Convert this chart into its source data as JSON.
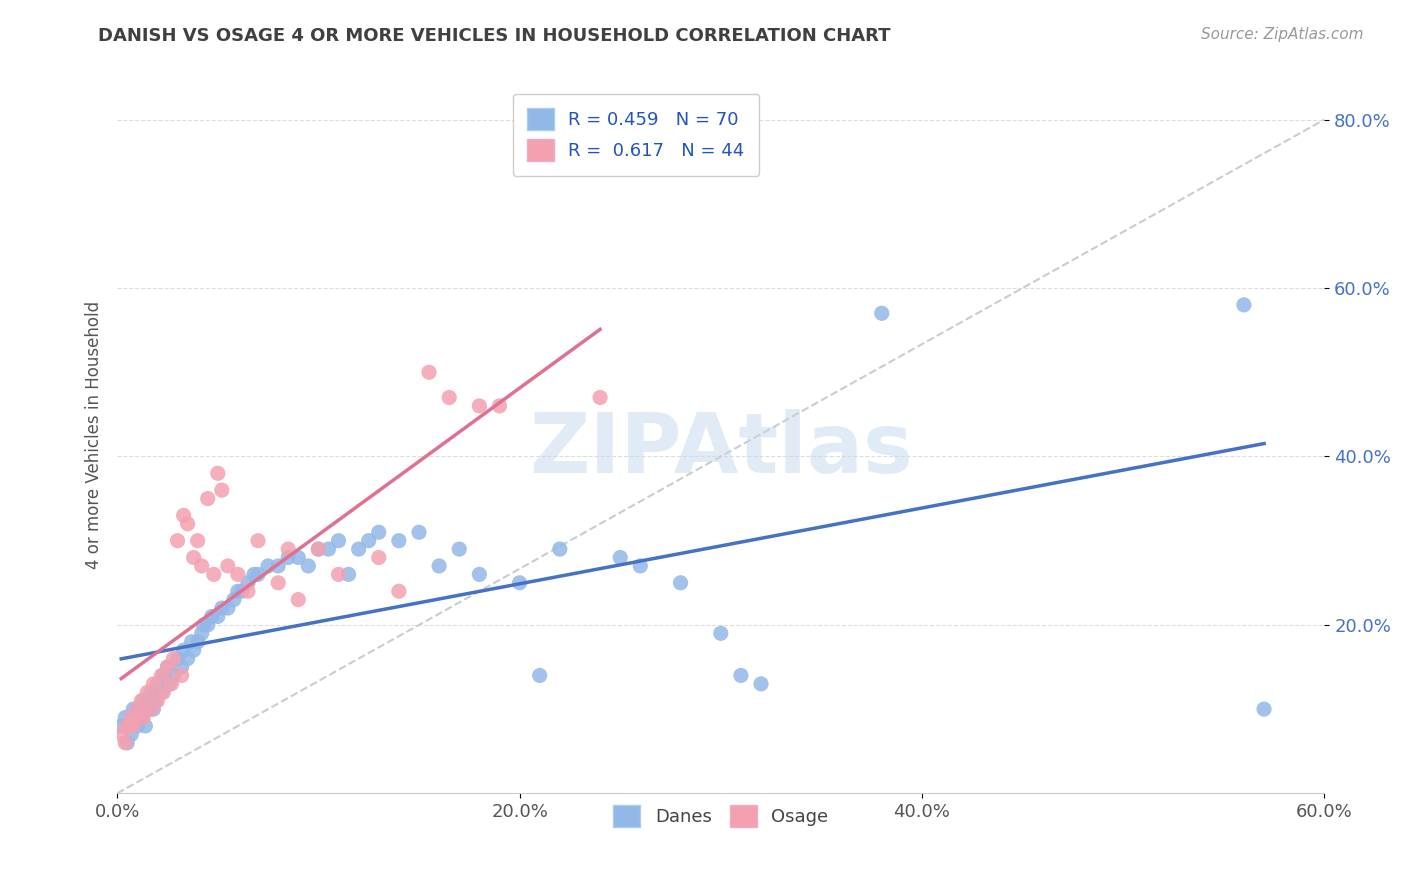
{
  "title": "DANISH VS OSAGE 4 OR MORE VEHICLES IN HOUSEHOLD CORRELATION CHART",
  "source": "Source: ZipAtlas.com",
  "ylabel": "4 or more Vehicles in Household",
  "xlim": [
    0.0,
    0.6
  ],
  "ylim": [
    0.0,
    0.85
  ],
  "xtick_vals": [
    0.0,
    0.2,
    0.4,
    0.6
  ],
  "xtick_labels": [
    "0.0%",
    "20.0%",
    "40.0%",
    "60.0%"
  ],
  "ytick_vals": [
    0.2,
    0.4,
    0.6,
    0.8
  ],
  "ytick_labels": [
    "20.0%",
    "40.0%",
    "60.0%",
    "80.0%"
  ],
  "danes_color": "#92b8e8",
  "osage_color": "#f4a0b0",
  "danes_line_color": "#4472c4",
  "osage_line_color": "#e07090",
  "R_danes": 0.459,
  "N_danes": 70,
  "R_osage": 0.617,
  "N_osage": 44,
  "legend_label_danes": "Danes",
  "legend_label_osage": "Osage",
  "danes_points": [
    [
      0.002,
      0.08
    ],
    [
      0.004,
      0.09
    ],
    [
      0.005,
      0.06
    ],
    [
      0.007,
      0.07
    ],
    [
      0.008,
      0.1
    ],
    [
      0.01,
      0.08
    ],
    [
      0.01,
      0.1
    ],
    [
      0.012,
      0.09
    ],
    [
      0.013,
      0.11
    ],
    [
      0.014,
      0.08
    ],
    [
      0.015,
      0.1
    ],
    [
      0.016,
      0.11
    ],
    [
      0.017,
      0.12
    ],
    [
      0.018,
      0.1
    ],
    [
      0.019,
      0.11
    ],
    [
      0.02,
      0.13
    ],
    [
      0.022,
      0.12
    ],
    [
      0.023,
      0.14
    ],
    [
      0.025,
      0.15
    ],
    [
      0.026,
      0.13
    ],
    [
      0.028,
      0.14
    ],
    [
      0.03,
      0.16
    ],
    [
      0.032,
      0.15
    ],
    [
      0.033,
      0.17
    ],
    [
      0.035,
      0.16
    ],
    [
      0.037,
      0.18
    ],
    [
      0.038,
      0.17
    ],
    [
      0.04,
      0.18
    ],
    [
      0.042,
      0.19
    ],
    [
      0.043,
      0.2
    ],
    [
      0.045,
      0.2
    ],
    [
      0.047,
      0.21
    ],
    [
      0.05,
      0.21
    ],
    [
      0.052,
      0.22
    ],
    [
      0.055,
      0.22
    ],
    [
      0.058,
      0.23
    ],
    [
      0.06,
      0.24
    ],
    [
      0.062,
      0.24
    ],
    [
      0.065,
      0.25
    ],
    [
      0.068,
      0.26
    ],
    [
      0.07,
      0.26
    ],
    [
      0.075,
      0.27
    ],
    [
      0.08,
      0.27
    ],
    [
      0.085,
      0.28
    ],
    [
      0.09,
      0.28
    ],
    [
      0.095,
      0.27
    ],
    [
      0.1,
      0.29
    ],
    [
      0.105,
      0.29
    ],
    [
      0.11,
      0.3
    ],
    [
      0.115,
      0.26
    ],
    [
      0.12,
      0.29
    ],
    [
      0.125,
      0.3
    ],
    [
      0.13,
      0.31
    ],
    [
      0.14,
      0.3
    ],
    [
      0.15,
      0.31
    ],
    [
      0.16,
      0.27
    ],
    [
      0.17,
      0.29
    ],
    [
      0.18,
      0.26
    ],
    [
      0.2,
      0.25
    ],
    [
      0.21,
      0.14
    ],
    [
      0.22,
      0.29
    ],
    [
      0.25,
      0.28
    ],
    [
      0.26,
      0.27
    ],
    [
      0.28,
      0.25
    ],
    [
      0.3,
      0.19
    ],
    [
      0.31,
      0.14
    ],
    [
      0.32,
      0.13
    ],
    [
      0.38,
      0.57
    ],
    [
      0.56,
      0.58
    ],
    [
      0.57,
      0.1
    ]
  ],
  "osage_points": [
    [
      0.002,
      0.07
    ],
    [
      0.004,
      0.06
    ],
    [
      0.005,
      0.08
    ],
    [
      0.007,
      0.09
    ],
    [
      0.008,
      0.08
    ],
    [
      0.01,
      0.1
    ],
    [
      0.012,
      0.11
    ],
    [
      0.013,
      0.09
    ],
    [
      0.015,
      0.12
    ],
    [
      0.017,
      0.1
    ],
    [
      0.018,
      0.13
    ],
    [
      0.02,
      0.11
    ],
    [
      0.022,
      0.14
    ],
    [
      0.023,
      0.12
    ],
    [
      0.025,
      0.15
    ],
    [
      0.027,
      0.13
    ],
    [
      0.028,
      0.16
    ],
    [
      0.03,
      0.3
    ],
    [
      0.032,
      0.14
    ],
    [
      0.033,
      0.33
    ],
    [
      0.035,
      0.32
    ],
    [
      0.038,
      0.28
    ],
    [
      0.04,
      0.3
    ],
    [
      0.042,
      0.27
    ],
    [
      0.045,
      0.35
    ],
    [
      0.048,
      0.26
    ],
    [
      0.05,
      0.38
    ],
    [
      0.052,
      0.36
    ],
    [
      0.055,
      0.27
    ],
    [
      0.06,
      0.26
    ],
    [
      0.065,
      0.24
    ],
    [
      0.07,
      0.3
    ],
    [
      0.08,
      0.25
    ],
    [
      0.085,
      0.29
    ],
    [
      0.09,
      0.23
    ],
    [
      0.1,
      0.29
    ],
    [
      0.11,
      0.26
    ],
    [
      0.13,
      0.28
    ],
    [
      0.14,
      0.24
    ],
    [
      0.155,
      0.5
    ],
    [
      0.165,
      0.47
    ],
    [
      0.18,
      0.46
    ],
    [
      0.19,
      0.46
    ],
    [
      0.24,
      0.47
    ]
  ]
}
